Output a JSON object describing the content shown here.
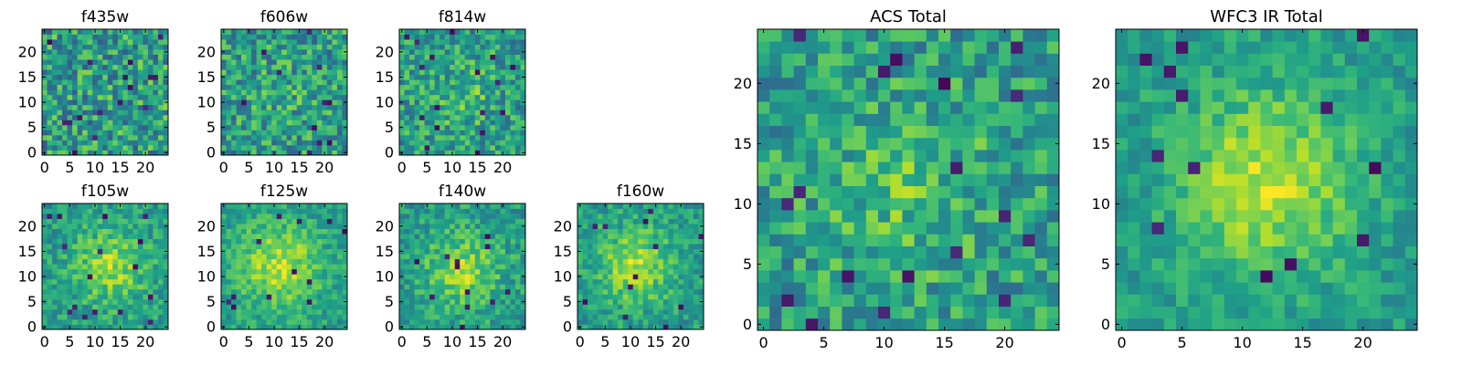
{
  "chart_data": [
    {
      "type": "heatmap",
      "title": "f435w",
      "grid_size": 25,
      "xticks": [
        0,
        5,
        10,
        15,
        20
      ],
      "yticks": [
        0,
        5,
        10,
        15,
        20
      ],
      "colormap": "viridis",
      "seed": 101,
      "peak": {
        "x": 12,
        "y": 12,
        "amplitude": 0.0,
        "sigma": 4
      },
      "noise": 0.55
    },
    {
      "type": "heatmap",
      "title": "f606w",
      "grid_size": 25,
      "xticks": [
        0,
        5,
        10,
        15,
        20
      ],
      "yticks": [
        0,
        5,
        10,
        15,
        20
      ],
      "colormap": "viridis",
      "seed": 202,
      "peak": {
        "x": 12,
        "y": 12,
        "amplitude": 0.1,
        "sigma": 4
      },
      "noise": 0.5
    },
    {
      "type": "heatmap",
      "title": "f814w",
      "grid_size": 25,
      "xticks": [
        0,
        5,
        10,
        15,
        20
      ],
      "yticks": [
        0,
        5,
        10,
        15,
        20
      ],
      "colormap": "viridis",
      "seed": 303,
      "peak": {
        "x": 13,
        "y": 11,
        "amplitude": 0.25,
        "sigma": 4
      },
      "noise": 0.45
    },
    {
      "type": "heatmap",
      "title": "f105w",
      "grid_size": 25,
      "xticks": [
        0,
        5,
        10,
        15,
        20
      ],
      "yticks": [
        0,
        5,
        10,
        15,
        20
      ],
      "colormap": "viridis",
      "seed": 404,
      "peak": {
        "x": 13,
        "y": 12,
        "amplitude": 0.5,
        "sigma": 5
      },
      "noise": 0.32
    },
    {
      "type": "heatmap",
      "title": "f125w",
      "grid_size": 25,
      "xticks": [
        0,
        5,
        10,
        15,
        20
      ],
      "yticks": [
        0,
        5,
        10,
        15,
        20
      ],
      "colormap": "viridis",
      "seed": 505,
      "peak": {
        "x": 11,
        "y": 12,
        "amplitude": 0.55,
        "sigma": 6
      },
      "noise": 0.28
    },
    {
      "type": "heatmap",
      "title": "f140w",
      "grid_size": 25,
      "xticks": [
        0,
        5,
        10,
        15,
        20
      ],
      "yticks": [
        0,
        5,
        10,
        15,
        20
      ],
      "colormap": "viridis",
      "seed": 606,
      "peak": {
        "x": 12,
        "y": 11,
        "amplitude": 0.5,
        "sigma": 5
      },
      "noise": 0.32
    },
    {
      "type": "heatmap",
      "title": "f160w",
      "grid_size": 25,
      "xticks": [
        0,
        5,
        10,
        15,
        20
      ],
      "yticks": [
        0,
        5,
        10,
        15,
        20
      ],
      "colormap": "viridis",
      "seed": 707,
      "peak": {
        "x": 11,
        "y": 12,
        "amplitude": 0.55,
        "sigma": 5
      },
      "noise": 0.3
    },
    {
      "type": "heatmap",
      "title": "ACS Total",
      "grid_size": 25,
      "xticks": [
        0,
        5,
        10,
        15,
        20
      ],
      "yticks": [
        0,
        5,
        10,
        15,
        20
      ],
      "colormap": "viridis",
      "seed": 808,
      "peak": {
        "x": 12,
        "y": 11,
        "amplitude": 0.25,
        "sigma": 5
      },
      "noise": 0.42
    },
    {
      "type": "heatmap",
      "title": "WFC3 IR Total",
      "grid_size": 25,
      "xticks": [
        0,
        5,
        10,
        15,
        20
      ],
      "yticks": [
        0,
        5,
        10,
        15,
        20
      ],
      "colormap": "viridis",
      "seed": 909,
      "peak": {
        "x": 12,
        "y": 12,
        "amplitude": 0.6,
        "sigma": 5
      },
      "noise": 0.25
    }
  ]
}
